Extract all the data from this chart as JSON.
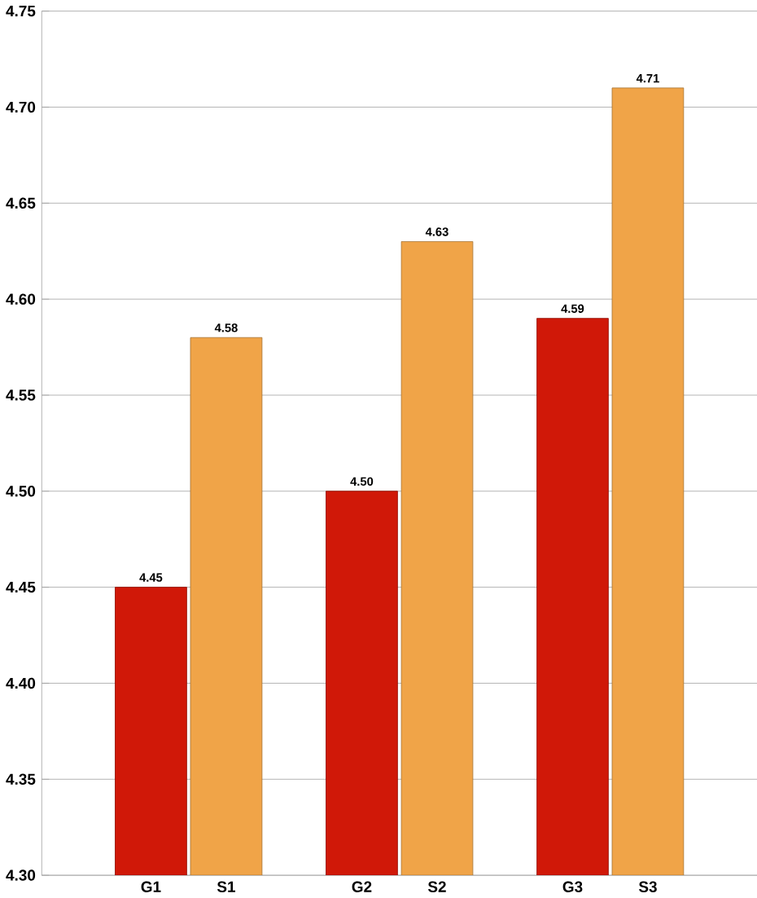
{
  "chart_data": {
    "type": "bar",
    "categories": [
      "G1",
      "S1",
      "G2",
      "S2",
      "G3",
      "S3"
    ],
    "values": [
      4.45,
      4.58,
      4.5,
      4.63,
      4.59,
      4.71
    ],
    "value_labels": [
      "4.45",
      "4.58",
      "4.50",
      "4.63",
      "4.59",
      "4.71"
    ],
    "colors": [
      "#d01808",
      "#f0a448",
      "#d01808",
      "#f0a448",
      "#d01808",
      "#f0a448"
    ],
    "ylim": [
      4.3,
      4.75
    ],
    "yticks": [
      {
        "value": 4.3,
        "label": "4.30"
      },
      {
        "value": 4.35,
        "label": "4.35"
      },
      {
        "value": 4.4,
        "label": "4.40"
      },
      {
        "value": 4.45,
        "label": "4.45"
      },
      {
        "value": 4.5,
        "label": "4.50"
      },
      {
        "value": 4.55,
        "label": "4.55"
      },
      {
        "value": 4.6,
        "label": "4.60"
      },
      {
        "value": 4.65,
        "label": "4.65"
      },
      {
        "value": 4.7,
        "label": "4.70"
      },
      {
        "value": 4.75,
        "label": "4.75"
      }
    ],
    "grid": "y"
  }
}
